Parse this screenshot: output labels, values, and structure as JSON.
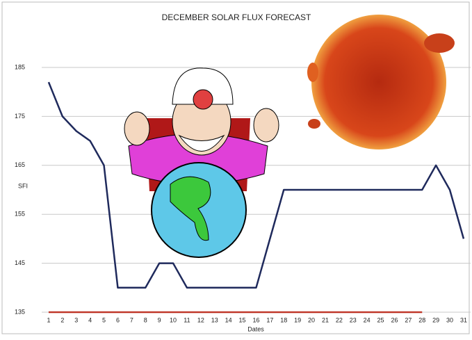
{
  "chart_data": {
    "type": "line",
    "title": "DECEMBER SOLAR FLUX FORECAST",
    "y_label": "SFI",
    "x_label": "Dates",
    "categories": [
      1,
      2,
      3,
      4,
      5,
      6,
      7,
      8,
      9,
      10,
      11,
      12,
      13,
      14,
      15,
      16,
      17,
      18,
      19,
      20,
      21,
      22,
      23,
      24,
      25,
      26,
      27,
      28,
      29,
      30,
      31
    ],
    "series": [
      {
        "color": "#1f2a5c",
        "values": [
          182,
          175,
          172,
          170,
          165,
          140,
          140,
          140,
          145,
          145,
          140,
          140,
          140,
          140,
          140,
          140,
          150,
          160,
          160,
          160,
          160,
          160,
          160,
          160,
          160,
          160,
          160,
          160,
          165,
          160,
          150
        ]
      },
      {
        "color": "#c0392b",
        "values": [
          135,
          135,
          135,
          135,
          135,
          135,
          135,
          135,
          135,
          135,
          135,
          135,
          135,
          135,
          135,
          135,
          135,
          135,
          135,
          135,
          135,
          135,
          135,
          135,
          135,
          135,
          135,
          135,
          null,
          null,
          null
        ]
      }
    ],
    "ylim": [
      135,
      185
    ],
    "yticks": [
      135,
      145,
      155,
      165,
      175,
      185
    ],
    "grid": true
  }
}
